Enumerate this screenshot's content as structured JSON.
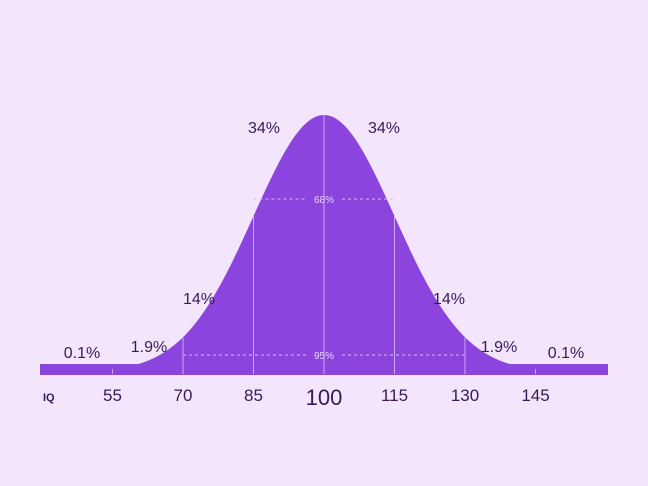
{
  "chart_data": {
    "type": "area",
    "title": "",
    "xlabel": "IQ",
    "ylabel": "",
    "mean": 100,
    "sd": 15,
    "xlim": [
      40,
      160
    ],
    "ticks": [
      {
        "value": 55,
        "label": "55"
      },
      {
        "value": 70,
        "label": "70"
      },
      {
        "value": 85,
        "label": "85"
      },
      {
        "value": 100,
        "label": "100"
      },
      {
        "value": 115,
        "label": "115"
      },
      {
        "value": 130,
        "label": "130"
      },
      {
        "value": 145,
        "label": "145"
      }
    ],
    "regions": [
      {
        "range": [
          40,
          55
        ],
        "label": "0.1%"
      },
      {
        "range": [
          55,
          70
        ],
        "label": "1.9%"
      },
      {
        "range": [
          70,
          85
        ],
        "label": "14%"
      },
      {
        "range": [
          85,
          100
        ],
        "label": "34%"
      },
      {
        "range": [
          100,
          115
        ],
        "label": "34%"
      },
      {
        "range": [
          115,
          130
        ],
        "label": "14%"
      },
      {
        "range": [
          130,
          145
        ],
        "label": "1.9%"
      },
      {
        "range": [
          145,
          160
        ],
        "label": "0.1%"
      }
    ],
    "brackets": [
      {
        "range": [
          85,
          115
        ],
        "label": "68%"
      },
      {
        "range": [
          70,
          130
        ],
        "label": "95%"
      }
    ],
    "colors": {
      "background": "#f3e5fb",
      "fill": "#8b44dd",
      "text": "#3a1a55",
      "inner_lines": "#d9b8f3"
    }
  }
}
